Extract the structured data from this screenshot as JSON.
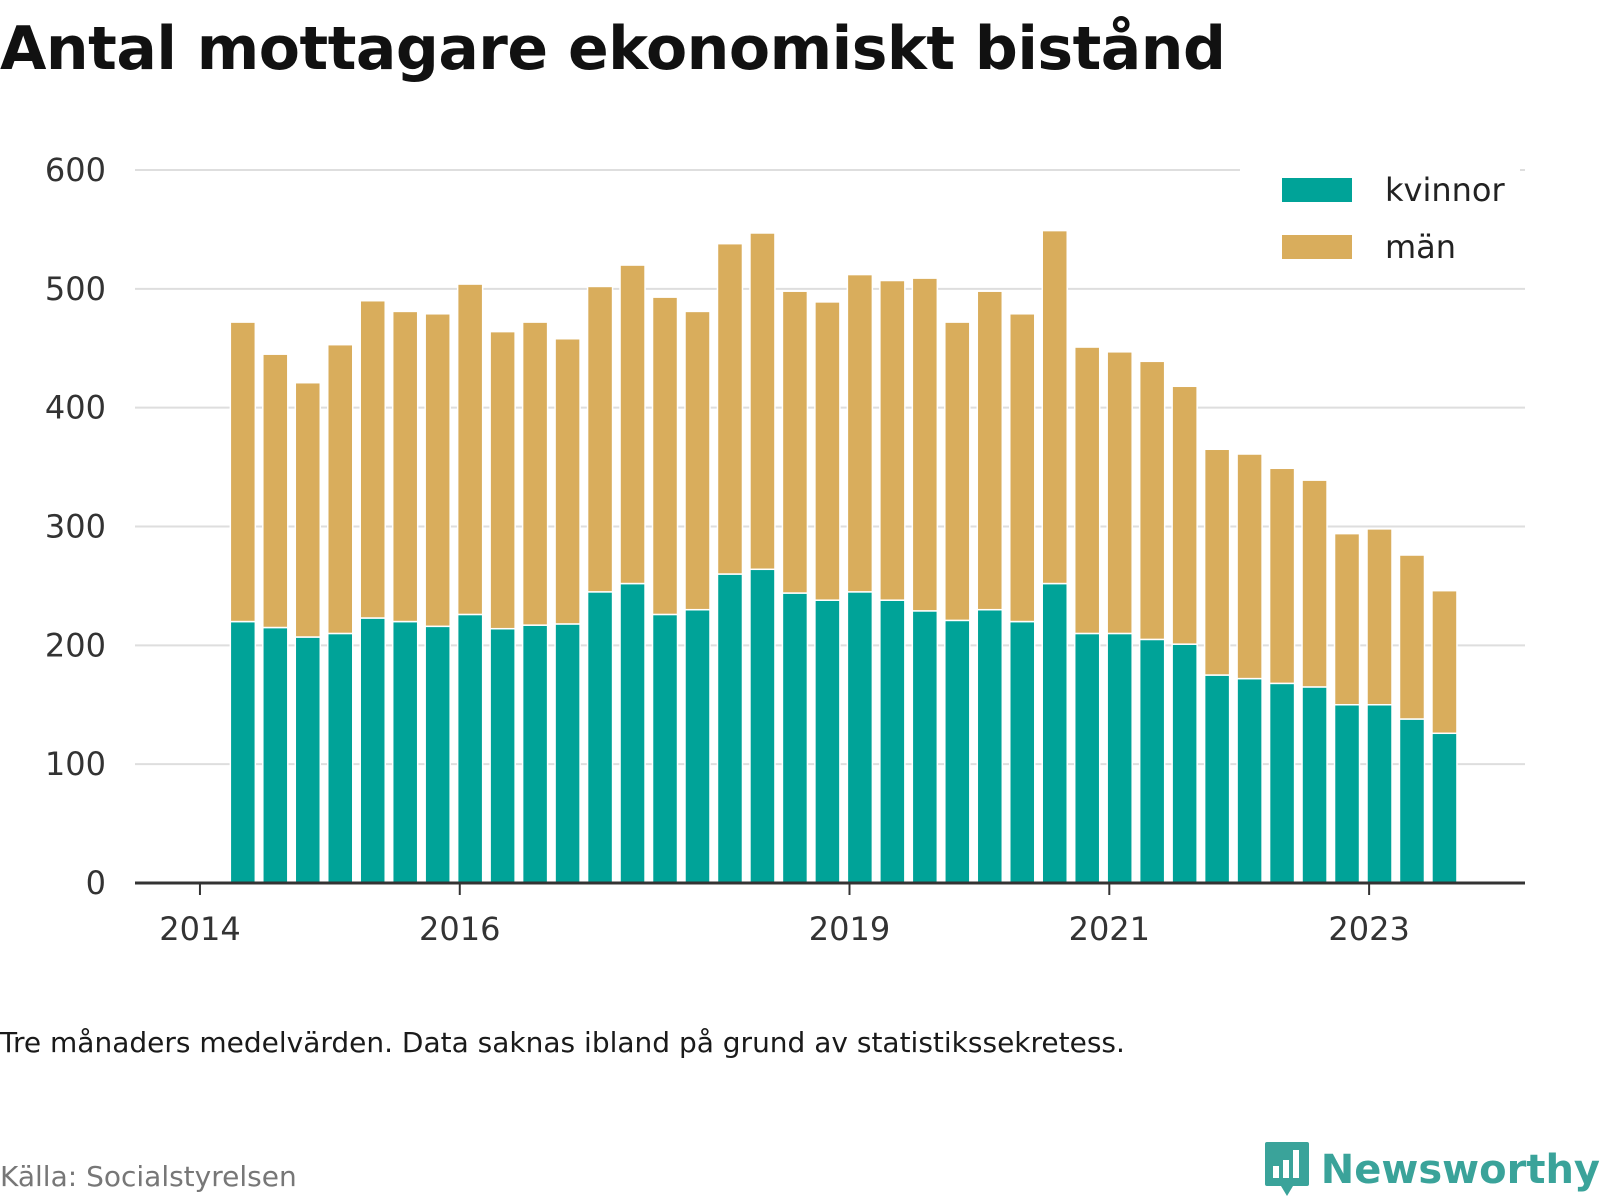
{
  "chart_data": {
    "type": "bar",
    "stacked": true,
    "title": "Antal mottagare ekonomiskt bistånd",
    "xlabel": "",
    "ylabel": "",
    "ylim": [
      0,
      600
    ],
    "yticks": [
      "0",
      "100",
      "200",
      "300",
      "400",
      "500",
      "600"
    ],
    "x_axis": {
      "ticks": [
        "2014",
        "2016",
        "2019",
        "2021",
        "2023"
      ],
      "tick_dates": [
        2014.0,
        2016.0,
        2019.0,
        2021.0,
        2023.0
      ],
      "range": [
        2013.5,
        2024.2
      ]
    },
    "bar_dates": [
      2014.33,
      2014.58,
      2014.83,
      2015.08,
      2015.33,
      2015.58,
      2015.83,
      2016.08,
      2016.33,
      2016.58,
      2016.83,
      2017.08,
      2017.33,
      2017.58,
      2017.83,
      2018.08,
      2018.33,
      2018.58,
      2018.83,
      2019.08,
      2019.33,
      2019.58,
      2019.83,
      2020.08,
      2020.33,
      2020.58,
      2020.83,
      2021.08,
      2021.33,
      2021.58,
      2021.83,
      2022.08,
      2022.33,
      2022.58,
      2022.83,
      2023.08,
      2023.33,
      2023.58
    ],
    "series": [
      {
        "name": "kvinnor",
        "color": "#00a398",
        "values": [
          220,
          215,
          207,
          210,
          223,
          220,
          216,
          226,
          214,
          217,
          218,
          245,
          252,
          226,
          230,
          260,
          264,
          244,
          238,
          245,
          238,
          229,
          221,
          230,
          220,
          252,
          210,
          210,
          205,
          201,
          175,
          172,
          168,
          165,
          150,
          150,
          138,
          126
        ]
      },
      {
        "name": "män",
        "color": "#d9ad5c",
        "values": [
          252,
          230,
          214,
          243,
          267,
          261,
          263,
          278,
          250,
          255,
          240,
          257,
          268,
          267,
          251,
          278,
          283,
          254,
          251,
          267,
          269,
          280,
          251,
          268,
          259,
          297,
          241,
          237,
          234,
          217,
          190,
          189,
          181,
          174,
          144,
          148,
          138,
          120
        ]
      }
    ],
    "legend": "top-right",
    "grid": true
  },
  "note": "Tre månaders medelvärden. Data saknas ibland på grund av statistikssekretess.",
  "source": "Källa: Socialstyrelsen",
  "brand": {
    "name": "Newsworthy",
    "icon": "newsworthy-logo-icon",
    "color": "#3aa39a"
  }
}
